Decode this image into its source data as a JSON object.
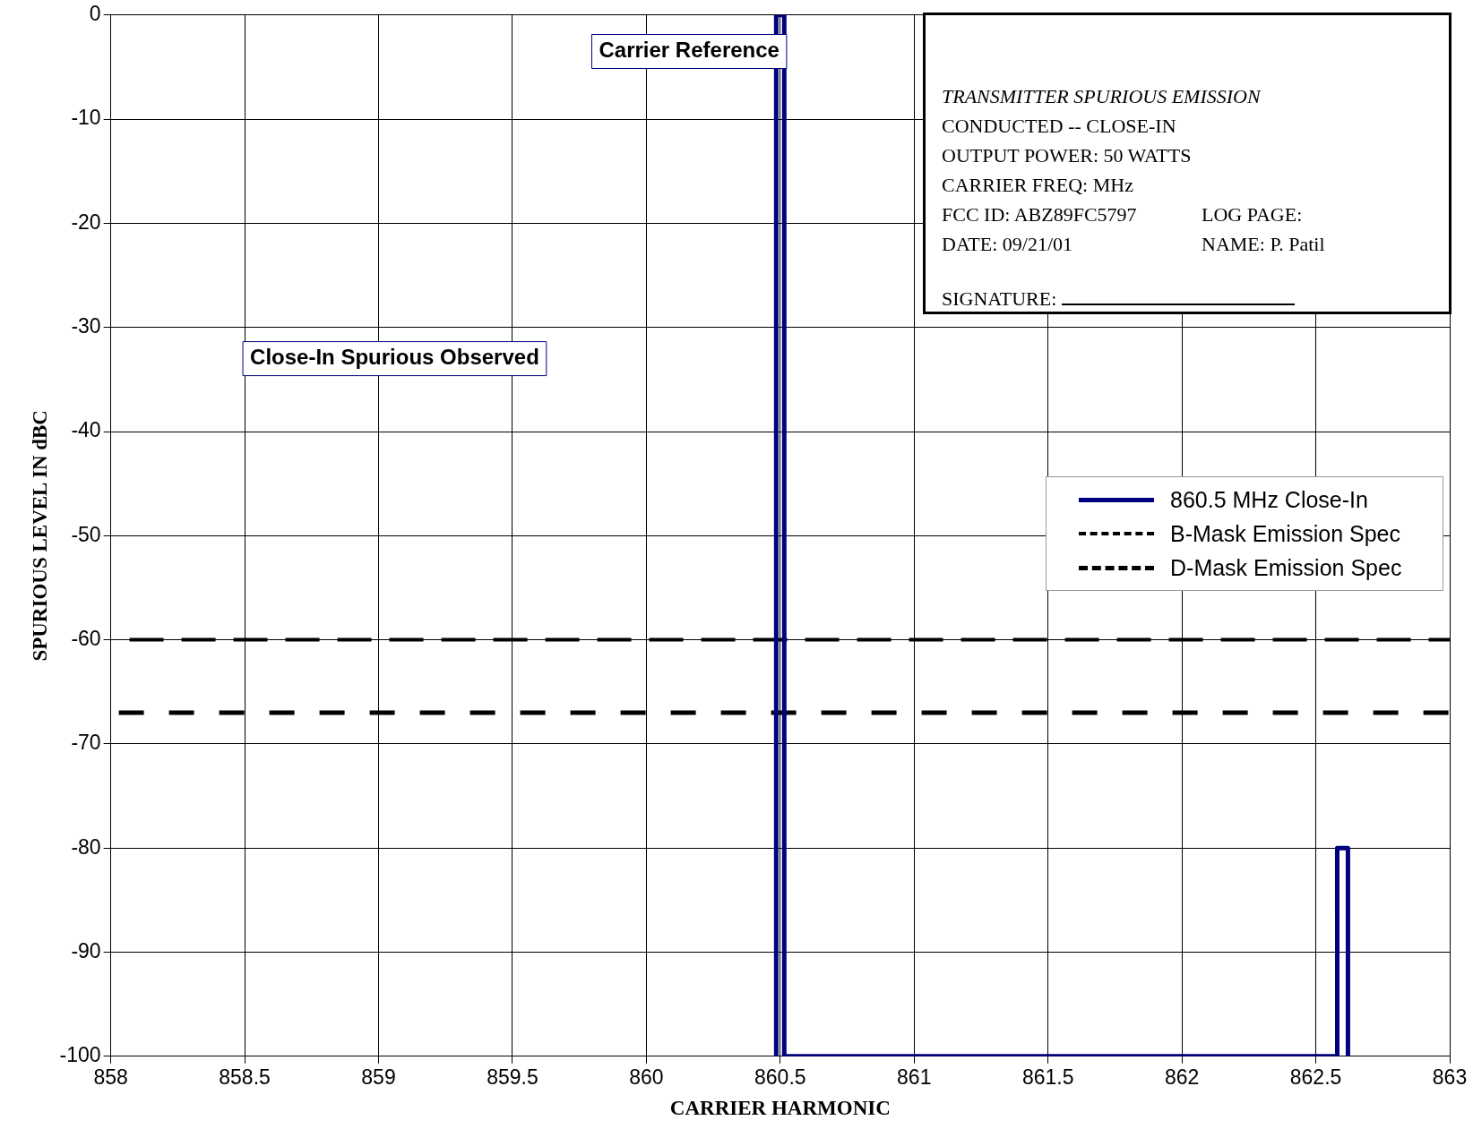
{
  "chart_data": {
    "type": "line",
    "xlabel": "CARRIER HARMONIC",
    "ylabel": "SPURIOUS LEVEL IN dBC",
    "xlim": [
      858,
      863
    ],
    "xticks": [
      858,
      858.5,
      859,
      859.5,
      860,
      860.5,
      861,
      861.5,
      862,
      862.5,
      863
    ],
    "ylim": [
      -100,
      0
    ],
    "yticks": [
      -100,
      -90,
      -80,
      -70,
      -60,
      -50,
      -40,
      -30,
      -20,
      -10,
      0
    ],
    "grid": true,
    "legend": "right",
    "marker": "none",
    "series": [
      {
        "name": "860.5 MHz Close-In",
        "color": "#000080",
        "line_style": "solid",
        "x": [
          860.485,
          860.485,
          860.515,
          860.515,
          862.58,
          862.58,
          862.62,
          862.62
        ],
        "values": [
          -100,
          0,
          0,
          -100,
          -100,
          -80,
          -80,
          -100
        ]
      },
      {
        "name": "B-Mask Emission Spec",
        "color": "#000000",
        "line_style": "dashed",
        "x": [
          858.07,
          863
        ],
        "values": [
          -60,
          -60
        ]
      },
      {
        "name": "D-Mask Emission Spec",
        "color": "#000000",
        "line_style": "dotted",
        "x": [
          858.03,
          863
        ],
        "values": [
          -67,
          -67
        ]
      }
    ],
    "annotations": [
      "Carrier Reference",
      "Close-In Spurious Observed",
      "TRANSMITTER SPURIOUS EMISSION",
      "CONDUCTED -- CLOSE-IN",
      "OUTPUT POWER: 50 WATTS",
      "CARRIER FREQ: MHz",
      "FCC ID: ABZ89FC5797",
      "LOG PAGE:",
      "DATE: 09/21/01",
      "NAME: P. Patil",
      "SIGNATURE:"
    ]
  }
}
